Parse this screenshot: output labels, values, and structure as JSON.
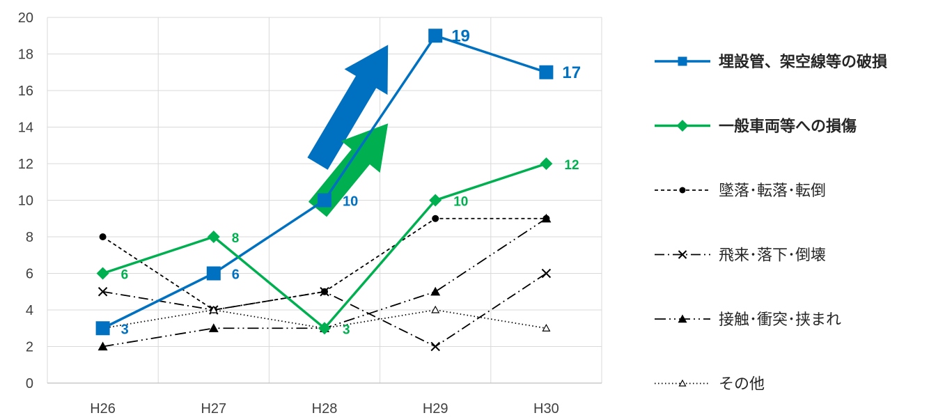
{
  "chart_data": {
    "type": "line",
    "categories": [
      "H26",
      "H27",
      "H28",
      "H29",
      "H30"
    ],
    "ylim": [
      0,
      20
    ],
    "yticks": [
      0,
      2,
      4,
      6,
      8,
      10,
      12,
      14,
      16,
      18,
      20
    ],
    "grid": true,
    "legend_position": "right",
    "series": [
      {
        "name": "埋設管、架空線等の破損",
        "values": [
          3,
          6,
          10,
          19,
          17
        ],
        "color": "#0070C0",
        "marker": "square",
        "dash": "solid",
        "emphasis": true,
        "data_labels": [
          "3",
          "6",
          "10",
          "19",
          "17"
        ]
      },
      {
        "name": "一般車両等への損傷",
        "values": [
          6,
          8,
          3,
          10,
          12
        ],
        "color": "#00B050",
        "marker": "diamond",
        "dash": "solid",
        "emphasis": true,
        "data_labels": [
          "6",
          "8",
          "3",
          "10",
          "12"
        ]
      },
      {
        "name": "墜落･転落･転倒",
        "values": [
          8,
          4,
          5,
          9,
          9
        ],
        "color": "#000000",
        "marker": "circle",
        "dash": "short-dash",
        "emphasis": false
      },
      {
        "name": "飛来･落下･倒壊",
        "values": [
          5,
          4,
          5,
          2,
          6
        ],
        "color": "#000000",
        "marker": "x",
        "dash": "long-dash-dot",
        "emphasis": false
      },
      {
        "name": "接触･衝突･挟まれ",
        "values": [
          2,
          3,
          3,
          5,
          9
        ],
        "color": "#000000",
        "marker": "triangle",
        "dash": "long-dash-dot-dot",
        "emphasis": false
      },
      {
        "name": "その他",
        "values": [
          3,
          4,
          3,
          4,
          3
        ],
        "color": "#000000",
        "marker": "open-triangle",
        "dash": "dotted",
        "emphasis": false
      }
    ],
    "annotations": [
      {
        "name": "blue-trend-arrow",
        "color": "#0070C0",
        "from": {
          "x": "H28",
          "y": 12
        },
        "to": {
          "x": "H29",
          "y": 18.5
        }
      },
      {
        "name": "green-trend-arrow",
        "color": "#00B050",
        "from": {
          "x": "H28",
          "y": 9.5
        },
        "to": {
          "x": "H29",
          "y": 14.2
        }
      }
    ]
  }
}
